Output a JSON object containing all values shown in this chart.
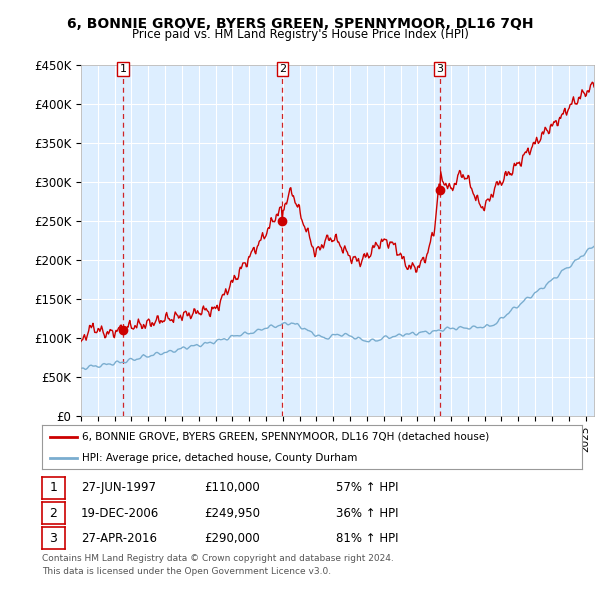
{
  "title": "6, BONNIE GROVE, BYERS GREEN, SPENNYMOOR, DL16 7QH",
  "subtitle": "Price paid vs. HM Land Registry's House Price Index (HPI)",
  "ylabel_ticks": [
    "£0",
    "£50K",
    "£100K",
    "£150K",
    "£200K",
    "£250K",
    "£300K",
    "£350K",
    "£400K",
    "£450K"
  ],
  "ytick_values": [
    0,
    50000,
    100000,
    150000,
    200000,
    250000,
    300000,
    350000,
    400000,
    450000
  ],
  "ylim": [
    0,
    450000
  ],
  "xlim_start": 1995.0,
  "xlim_end": 2025.5,
  "sale_dates": [
    1997.49,
    2006.97,
    2016.32
  ],
  "sale_prices": [
    110000,
    249950,
    290000
  ],
  "sale_labels": [
    "1",
    "2",
    "3"
  ],
  "legend_line1": "6, BONNIE GROVE, BYERS GREEN, SPENNYMOOR, DL16 7QH (detached house)",
  "legend_line2": "HPI: Average price, detached house, County Durham",
  "table_rows": [
    [
      "1",
      "27-JUN-1997",
      "£110,000",
      "57% ↑ HPI"
    ],
    [
      "2",
      "19-DEC-2006",
      "£249,950",
      "36% ↑ HPI"
    ],
    [
      "3",
      "27-APR-2016",
      "£290,000",
      "81% ↑ HPI"
    ]
  ],
  "footnote1": "Contains HM Land Registry data © Crown copyright and database right 2024.",
  "footnote2": "This data is licensed under the Open Government Licence v3.0.",
  "red_color": "#cc0000",
  "blue_color": "#7aadcf",
  "bg_plot_color": "#ddeeff",
  "bg_color": "#ffffff",
  "grid_color": "#ffffff",
  "sale_marker_color": "#cc0000",
  "dashed_line_color": "#cc0000"
}
